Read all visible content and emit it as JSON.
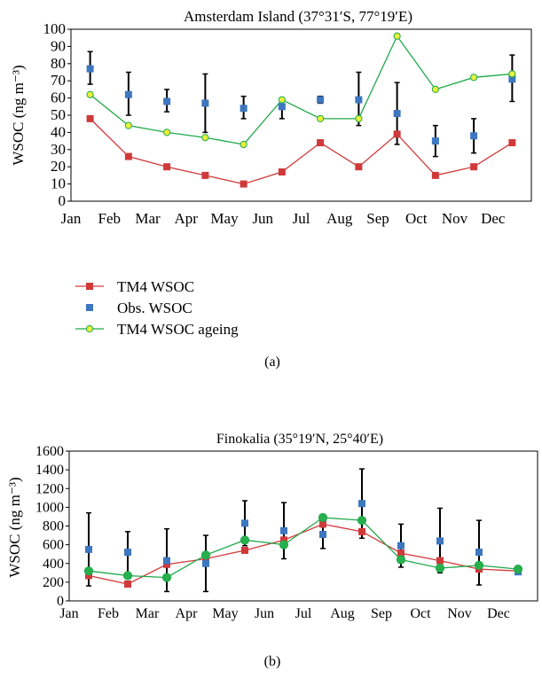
{
  "colors": {
    "tm4": "#d0393a",
    "obs": "#3d77c0",
    "ageing_line": "#1faa4a",
    "ageing_marker_a": "#e9f03a",
    "ageing_marker_b": "#28b04d",
    "errorbar": "#000000"
  },
  "chart_data": [
    {
      "panel": "(a)",
      "type": "line",
      "title": "Amsterdam Island (37°31′S, 77°19′E)",
      "ylabel": "WSOC (ng m⁻³)",
      "ylim": [
        0,
        100
      ],
      "yticks": [
        0,
        10,
        20,
        30,
        40,
        50,
        60,
        70,
        80,
        90,
        100
      ],
      "categories": [
        "Jan",
        "Feb",
        "Mar",
        "Apr",
        "May",
        "Jun",
        "Jul",
        "Aug",
        "Sep",
        "Oct",
        "Nov",
        "Dec"
      ],
      "grid": false,
      "legend_position": "below",
      "legend": [
        "TM4 WSOC",
        "Obs. WSOC",
        "TM4 WSOC ageing"
      ],
      "series": [
        {
          "name": "TM4 WSOC",
          "values": [
            48,
            26,
            20,
            15,
            10,
            17,
            34,
            20,
            39,
            15,
            20,
            34
          ]
        },
        {
          "name": "TM4 WSOC ageing",
          "values": [
            62,
            44,
            40,
            37,
            33,
            59,
            48,
            48,
            96,
            65,
            72,
            74
          ]
        }
      ],
      "observations": {
        "name": "Obs. WSOC",
        "values": [
          77,
          62,
          58,
          57,
          54,
          55,
          59,
          59,
          51,
          35,
          38,
          71
        ],
        "err_high": [
          87,
          75,
          65,
          74,
          61,
          60,
          61,
          75,
          69,
          44,
          48,
          85
        ],
        "err_low": [
          68,
          50,
          52,
          40,
          48,
          48,
          57,
          44,
          33,
          26,
          28,
          58
        ]
      }
    },
    {
      "panel": "(b)",
      "type": "line",
      "title": "Finokalia (35°19′N, 25°40′E)",
      "ylabel": "WSOC (ng m⁻³)",
      "ylim": [
        0,
        1600
      ],
      "yticks": [
        0,
        200,
        400,
        600,
        800,
        1000,
        1200,
        1400,
        1600
      ],
      "categories": [
        "Jan",
        "Feb",
        "Mar",
        "Apr",
        "May",
        "Jun",
        "Jul",
        "Aug",
        "Sep",
        "Oct",
        "Nov",
        "Dec"
      ],
      "grid": false,
      "series": [
        {
          "name": "TM4 WSOC",
          "values": [
            270,
            180,
            390,
            450,
            540,
            650,
            820,
            740,
            510,
            430,
            340,
            320
          ]
        },
        {
          "name": "TM4 WSOC ageing",
          "values": [
            320,
            270,
            250,
            490,
            650,
            600,
            890,
            860,
            440,
            350,
            380,
            340
          ]
        }
      ],
      "observations": {
        "name": "Obs. WSOC",
        "values": [
          550,
          520,
          430,
          400,
          830,
          750,
          710,
          1040,
          590,
          640,
          520,
          310
        ],
        "err_high": [
          940,
          740,
          770,
          700,
          1070,
          1050,
          860,
          1410,
          820,
          990,
          860,
          330
        ],
        "err_low": [
          160,
          300,
          100,
          100,
          590,
          450,
          560,
          670,
          360,
          300,
          170,
          290
        ]
      }
    }
  ],
  "captions": {
    "a": "(a)",
    "b": "(b)"
  }
}
